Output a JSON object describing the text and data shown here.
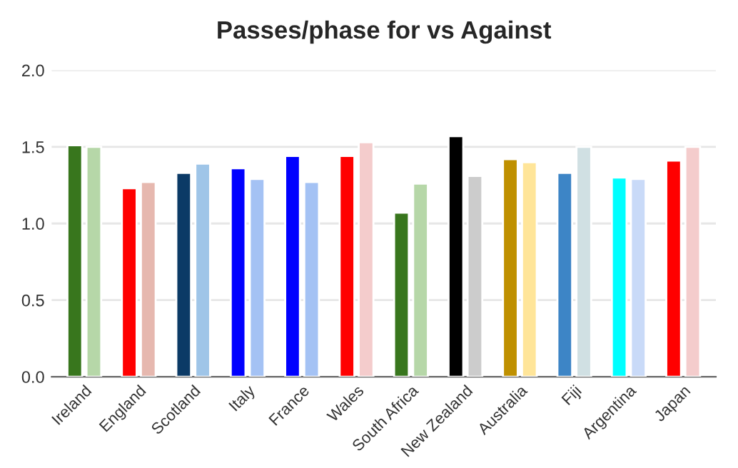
{
  "chart_data": {
    "type": "bar",
    "title": "Passes/phase for vs Against",
    "categories": [
      "Ireland",
      "England",
      "Scotland",
      "Italy",
      "France",
      "Wales",
      "South Africa",
      "New Zealand",
      "Australia",
      "Fiji",
      "Argentina",
      "Japan"
    ],
    "series": [
      {
        "values": [
          1.51,
          1.23,
          1.33,
          1.36,
          1.44,
          1.44,
          1.07,
          1.57,
          1.42,
          1.33,
          1.3,
          1.41
        ],
        "colors": [
          "#38761d",
          "#ff0000",
          "#0b3a66",
          "#0000ff",
          "#0000ff",
          "#ff0000",
          "#38761d",
          "#000000",
          "#bf9000",
          "#3d85c6",
          "#00ffff",
          "#ff0000"
        ]
      },
      {
        "values": [
          1.5,
          1.27,
          1.39,
          1.29,
          1.27,
          1.53,
          1.26,
          1.31,
          1.4,
          1.5,
          1.29,
          1.5
        ],
        "colors": [
          "#b6d7a8",
          "#e6b8af",
          "#9fc5e8",
          "#a4c2f4",
          "#a4c2f4",
          "#f4cccc",
          "#b6d7a8",
          "#cccccc",
          "#ffe599",
          "#d0e0e3",
          "#c9daf8",
          "#f4cccc"
        ]
      }
    ],
    "ylim": [
      0,
      2
    ],
    "yticks": [
      {
        "value": 0,
        "label": "0.0"
      },
      {
        "value": 0.5,
        "label": "0.5"
      },
      {
        "value": 1,
        "label": "1.0"
      },
      {
        "value": 1.5,
        "label": "1.5"
      },
      {
        "value": 2,
        "label": "2.0"
      }
    ],
    "grid": "y",
    "legend": false
  }
}
